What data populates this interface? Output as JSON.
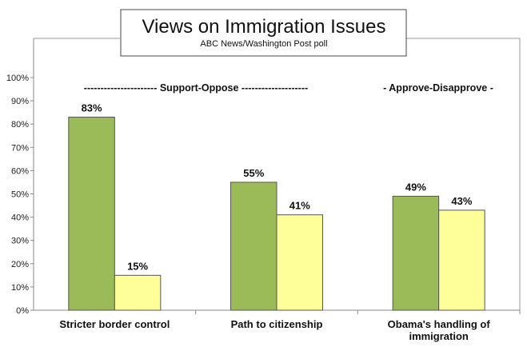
{
  "chart_data": {
    "type": "bar",
    "title": "Views on Immigration Issues",
    "subtitle": "ABC News/Washington Post poll",
    "categories": [
      "Stricter border control",
      "Path to citizenship",
      "Obama's handling of immigration"
    ],
    "category_lines": [
      [
        "Stricter border control"
      ],
      [
        "Path to citizenship"
      ],
      [
        "Obama's handling of",
        "immigration"
      ]
    ],
    "series": [
      {
        "values": [
          83,
          55,
          49
        ],
        "color": "#9BBB59"
      },
      {
        "values": [
          15,
          41,
          43
        ],
        "color": "#FFFF99"
      }
    ],
    "data_labels": [
      [
        "83%",
        "55%",
        "49%"
      ],
      [
        "15%",
        "41%",
        "43%"
      ]
    ],
    "group_labels": [
      "---------------------- Support-Oppose --------------------",
      "- Approve-Disapprove -"
    ],
    "ylim": [
      0,
      100
    ],
    "yticks": [
      "0%",
      "10%",
      "20%",
      "30%",
      "40%",
      "50%",
      "60%",
      "70%",
      "80%",
      "90%",
      "100%"
    ],
    "grid": false,
    "legend": "none"
  }
}
